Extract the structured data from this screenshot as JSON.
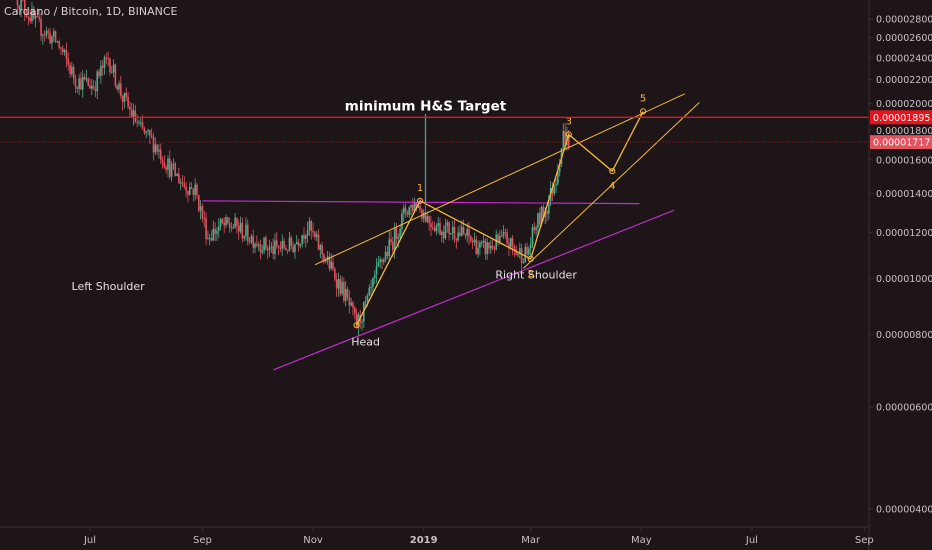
{
  "header": {
    "symbol_title": "Cardano / Bitcoin, 1D, BINANCE"
  },
  "colors": {
    "background": "#1e1519",
    "axis_line": "#3a3034",
    "axis_text": "#c9c0c4",
    "candle_up": "#4caf8a",
    "candle_down": "#e4525e",
    "target_line": "#e8141d",
    "price_line": "#b51a2c",
    "neckline": "#c22ad1",
    "wave_lines": "#f5b93a",
    "target_marker": "#2bb7a6",
    "annotation_text": "#e6e0e2"
  },
  "chart_data": {
    "type": "candlestick",
    "title": "minimum H&S Target",
    "x_ticks": [
      "Jul",
      "Sep",
      "Nov",
      "2019",
      "Mar",
      "May",
      "Jul",
      "Sep"
    ],
    "x_tick_days": [
      0,
      62,
      123,
      184,
      243,
      304,
      365,
      427
    ],
    "y_scale": "log",
    "y_ticks": [
      "0.00002800",
      "0.00002600",
      "0.00002400",
      "0.00002200",
      "0.00002000",
      "0.00001800",
      "0.00001600",
      "0.00001400",
      "0.00001200",
      "0.00001000",
      "0.00000800",
      "0.00000600",
      "0.00000400"
    ],
    "y_range": [
      3.9e-06,
      2.9e-06
    ],
    "price_labels": [
      {
        "text": "0.00001895",
        "value": 1.895e-05,
        "role": "target"
      },
      {
        "text": "0.00001717",
        "value": 1.717e-05,
        "role": "last"
      }
    ],
    "target_line_value": 1.895e-05,
    "price_anchors": [
      [
        -40,
        3.05e-05
      ],
      [
        -30,
        2.75e-05
      ],
      [
        -18,
        2.55e-05
      ],
      [
        -8,
        2.2e-05
      ],
      [
        2,
        2.15e-05
      ],
      [
        10,
        2.4e-05
      ],
      [
        18,
        2.05e-05
      ],
      [
        28,
        1.8e-05
      ],
      [
        36,
        1.7e-05
      ],
      [
        44,
        1.55e-05
      ],
      [
        52,
        1.45e-05
      ],
      [
        58,
        1.42e-05
      ],
      [
        65,
        1.18e-05
      ],
      [
        72,
        1.23e-05
      ],
      [
        80,
        1.23e-05
      ],
      [
        90,
        1.17e-05
      ],
      [
        100,
        1.12e-05
      ],
      [
        112,
        1.14e-05
      ],
      [
        120,
        1.23e-05
      ],
      [
        127,
        1.12e-05
      ],
      [
        133,
        1.04e-05
      ],
      [
        141,
        9.3e-06
      ],
      [
        147,
        8.3e-06
      ],
      [
        153,
        9.1e-06
      ],
      [
        160,
        1.06e-05
      ],
      [
        167,
        1.16e-05
      ],
      [
        174,
        1.31e-05
      ],
      [
        180,
        1.35e-05
      ],
      [
        187,
        1.26e-05
      ],
      [
        193,
        1.22e-05
      ],
      [
        200,
        1.21e-05
      ],
      [
        208,
        1.18e-05
      ],
      [
        216,
        1.12e-05
      ],
      [
        222,
        1.14e-05
      ],
      [
        229,
        1.17e-05
      ],
      [
        235,
        1.11e-05
      ],
      [
        241,
        1.1e-05
      ],
      [
        246,
        1.24e-05
      ],
      [
        252,
        1.33e-05
      ],
      [
        257,
        1.5e-05
      ],
      [
        261,
        1.76e-05
      ],
      [
        264,
        1.717e-05
      ]
    ],
    "annotations": [
      {
        "text": "Left Shoulder",
        "day": 10,
        "value": 9.55e-06
      },
      {
        "text": "Head",
        "day": 152,
        "value": 7.65e-06
      },
      {
        "text": "Right Shoulder",
        "day": 246,
        "value": 1e-05
      }
    ],
    "wave_points": [
      {
        "label": "1",
        "day": 182,
        "value": 1.36e-05
      },
      {
        "label": "2",
        "day": 243,
        "value": 1.08e-05
      },
      {
        "label": "3",
        "day": 264,
        "value": 1.77e-05
      },
      {
        "label": "4",
        "day": 288,
        "value": 1.53e-05
      },
      {
        "label": "5",
        "day": 305,
        "value": 1.94e-05
      }
    ],
    "wave_path_start": {
      "day": 147,
      "value": 8.3e-06
    },
    "neckline": [
      [
        62,
        1.36e-05
      ],
      [
        303,
        1.345e-05
      ]
    ],
    "support_line": [
      [
        101,
        6.95e-06
      ],
      [
        322,
        1.31e-05
      ]
    ],
    "channel_upper": [
      [
        124,
        1.055e-05
      ],
      [
        328,
        2.08e-05
      ]
    ],
    "channel_lower": [
      [
        239,
        1.04e-05
      ],
      [
        336,
        2.01e-05
      ]
    ],
    "target_marker": [
      [
        185,
        1.34e-05
      ],
      [
        185,
        1.92e-05
      ]
    ]
  }
}
